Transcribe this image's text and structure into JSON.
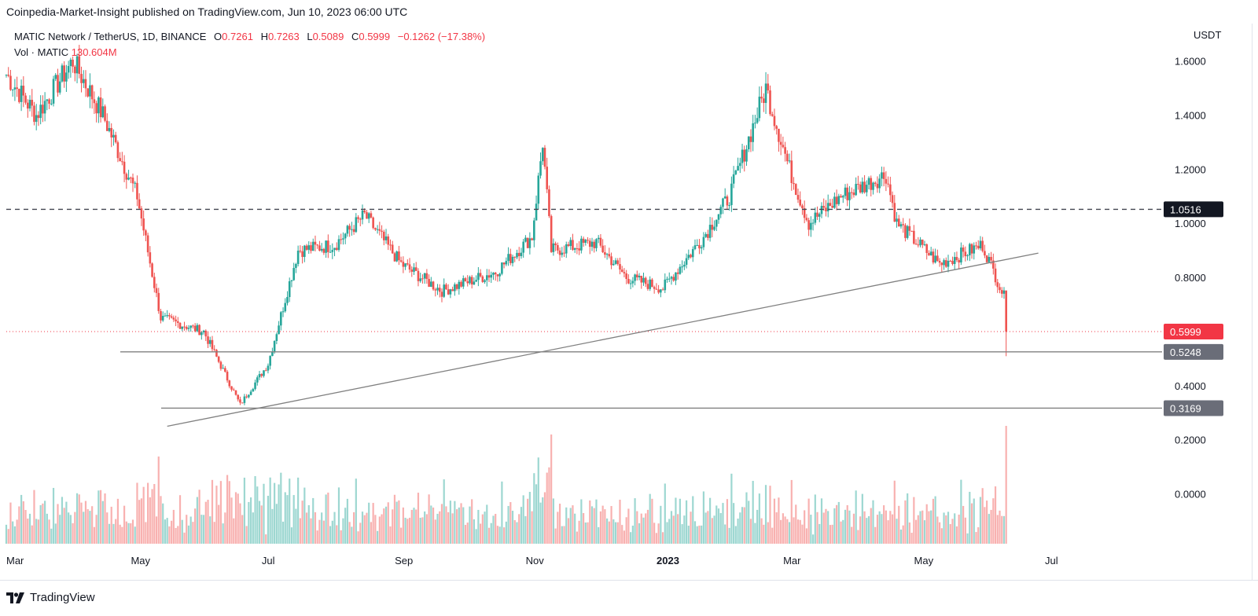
{
  "header": "Coinpedia-Market-Insight published on TradingView.com, Jun 10, 2023 06:00 UTC",
  "legend": {
    "symbol": "MATIC Network / TetherUS, 1D, BINANCE",
    "open_label": "O",
    "open_value": "0.7261",
    "high_label": "H",
    "high_value": "0.7263",
    "low_label": "L",
    "low_value": "0.5089",
    "close_label": "C",
    "close_value": "0.5999",
    "change": "−0.1262 (−17.38%)"
  },
  "volume_legend": {
    "label": "Vol · MATIC",
    "value": "130.604M"
  },
  "axis_currency": "USDT",
  "footer": {
    "brand": "TradingView"
  },
  "colors": {
    "up": "#26a69a",
    "down": "#ef5350",
    "last_price_badge": "#f23645",
    "level_badge": "#6a6d78",
    "trendline": "#808080",
    "dashed_level": "#434651"
  },
  "chart_data": {
    "type": "candlestick",
    "title": "MATIC Network / TetherUS, 1D, BINANCE",
    "y_axis": {
      "unit": "USDT",
      "ticks": [
        1.6,
        1.4,
        1.2,
        1.0,
        0.8,
        0.4,
        0.2,
        0.0
      ],
      "tick_labels": [
        "1.6000",
        "1.4000",
        "1.2000",
        "1.0000",
        "0.8000",
        "0.4000",
        "0.2000",
        "0.0000"
      ]
    },
    "x_axis": {
      "tick_labels": [
        "Mar",
        "May",
        "Jul",
        "Sep",
        "Nov",
        "2023",
        "Mar",
        "May",
        "Jul"
      ]
    },
    "levels": [
      {
        "value": 1.0516,
        "label": "1.0516",
        "style": "dashed"
      },
      {
        "value": 0.5248,
        "label": "0.5248",
        "style": "solid"
      },
      {
        "value": 0.3169,
        "label": "0.3169",
        "style": "solid"
      }
    ],
    "last_price": {
      "value": 0.5999,
      "label": "0.5999"
    },
    "trendline": {
      "from": {
        "date": "2022-05-15",
        "price": 0.25
      },
      "to": {
        "date": "2023-06-25",
        "price": 0.89
      }
    },
    "price_path": [
      {
        "date": "2022-03-01",
        "close": 1.55
      },
      {
        "date": "2022-03-15",
        "close": 1.4
      },
      {
        "date": "2022-04-01",
        "close": 1.6
      },
      {
        "date": "2022-04-15",
        "close": 1.4
      },
      {
        "date": "2022-05-01",
        "close": 1.1
      },
      {
        "date": "2022-05-12",
        "close": 0.65
      },
      {
        "date": "2022-06-01",
        "close": 0.6
      },
      {
        "date": "2022-06-18",
        "close": 0.33
      },
      {
        "date": "2022-07-01",
        "close": 0.48
      },
      {
        "date": "2022-07-15",
        "close": 0.9
      },
      {
        "date": "2022-08-01",
        "close": 0.92
      },
      {
        "date": "2022-08-15",
        "close": 1.03
      },
      {
        "date": "2022-09-01",
        "close": 0.85
      },
      {
        "date": "2022-09-20",
        "close": 0.75
      },
      {
        "date": "2022-10-15",
        "close": 0.82
      },
      {
        "date": "2022-11-01",
        "close": 0.95
      },
      {
        "date": "2022-11-06",
        "close": 1.3
      },
      {
        "date": "2022-11-10",
        "close": 0.9
      },
      {
        "date": "2022-12-01",
        "close": 0.93
      },
      {
        "date": "2022-12-15",
        "close": 0.8
      },
      {
        "date": "2023-01-01",
        "close": 0.76
      },
      {
        "date": "2023-01-20",
        "close": 0.95
      },
      {
        "date": "2023-02-01",
        "close": 1.1
      },
      {
        "date": "2023-02-18",
        "close": 1.5
      },
      {
        "date": "2023-03-01",
        "close": 1.2
      },
      {
        "date": "2023-03-10",
        "close": 1.0
      },
      {
        "date": "2023-03-25",
        "close": 1.1
      },
      {
        "date": "2023-04-15",
        "close": 1.18
      },
      {
        "date": "2023-04-20",
        "close": 1.0
      },
      {
        "date": "2023-05-10",
        "close": 0.85
      },
      {
        "date": "2023-05-30",
        "close": 0.92
      },
      {
        "date": "2023-06-09",
        "close": 0.73
      },
      {
        "date": "2023-06-10",
        "close": 0.5999
      }
    ]
  }
}
